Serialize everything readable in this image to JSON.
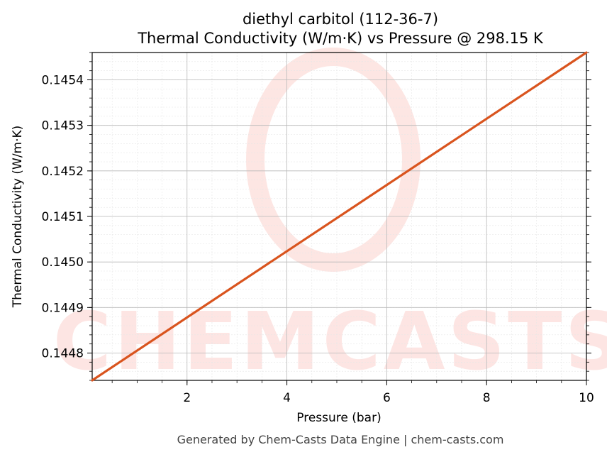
{
  "chart_data": {
    "type": "line",
    "title": "diethyl carbitol (112-36-7)",
    "subtitle": "Thermal Conductivity (W/m·K) vs Pressure @ 298.15 K",
    "xlabel": "Pressure (bar)",
    "ylabel": "Thermal Conductivity (W/m·K)",
    "xlim": [
      0.1,
      10
    ],
    "ylim": [
      0.14474,
      0.14546
    ],
    "x_ticks": [
      2,
      4,
      6,
      8,
      10
    ],
    "x_tick_labels": [
      "2",
      "4",
      "6",
      "8",
      "10"
    ],
    "y_ticks": [
      0.1448,
      0.1449,
      0.145,
      0.1451,
      0.1452,
      0.1453,
      0.1454
    ],
    "y_tick_labels": [
      "0.1448",
      "0.1449",
      "0.1450",
      "0.1451",
      "0.1452",
      "0.1453",
      "0.1454"
    ],
    "grid": true,
    "series": [
      {
        "color": "#d9541e",
        "x": [
          0.1,
          10
        ],
        "y": [
          0.14474,
          0.14546
        ]
      }
    ]
  },
  "watermark": {
    "text": "CHEMCASTS",
    "color": "#fde3e0"
  },
  "footer": {
    "text": "Generated by Chem-Casts Data Engine | chem-casts.com"
  }
}
